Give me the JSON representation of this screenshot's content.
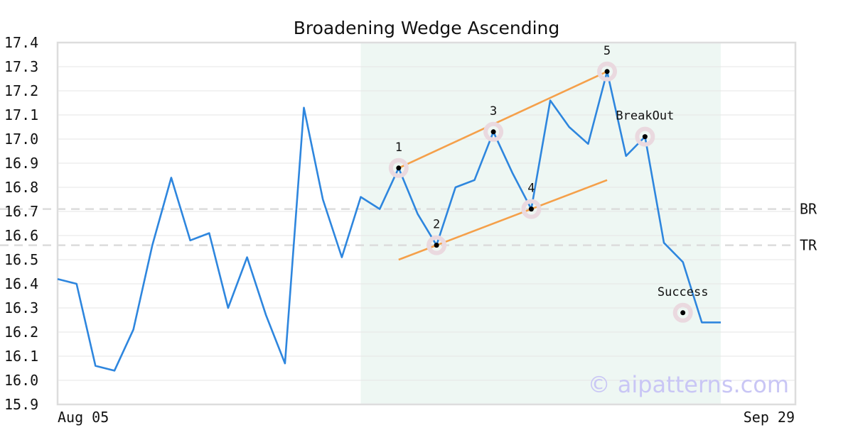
{
  "chart_data": {
    "type": "line",
    "title": "Broadening Wedge Ascending",
    "xlabel": "",
    "ylabel": "",
    "x_tick_labels": [
      "Aug 05",
      "Sep 29"
    ],
    "ylim": [
      15.9,
      17.4
    ],
    "y_ticks": [
      15.9,
      16.0,
      16.1,
      16.2,
      16.3,
      16.4,
      16.5,
      16.6,
      16.7,
      16.8,
      16.9,
      17.0,
      17.1,
      17.2,
      17.3,
      17.4
    ],
    "grid": true,
    "series": [
      {
        "color": "#2e86de",
        "values": [
          16.42,
          16.4,
          16.06,
          16.04,
          16.21,
          16.56,
          16.84,
          16.58,
          16.61,
          16.3,
          16.51,
          16.27,
          16.07,
          17.13,
          16.75,
          16.51,
          16.76,
          16.71,
          16.88,
          16.69,
          16.56,
          16.8,
          16.83,
          17.03,
          16.86,
          16.71,
          17.16,
          17.05,
          16.98,
          17.28,
          16.93,
          17.01,
          16.57,
          16.49,
          16.24,
          16.24
        ]
      }
    ],
    "pattern_region": {
      "start_index": 16,
      "end_index": 35,
      "color": "#eef7f3"
    },
    "trend_lines": [
      {
        "color": "#f5a04a",
        "from": [
          18,
          16.88
        ],
        "to": [
          29,
          17.28
        ]
      },
      {
        "color": "#f5a04a",
        "from": [
          18,
          16.5
        ],
        "to": [
          29,
          16.83
        ]
      }
    ],
    "reference_lines": [
      {
        "label": "BR",
        "y": 16.71
      },
      {
        "label": "TR",
        "y": 16.56
      }
    ],
    "points": [
      {
        "label": "1",
        "index": 18,
        "y": 16.88
      },
      {
        "label": "2",
        "index": 20,
        "y": 16.56
      },
      {
        "label": "3",
        "index": 23,
        "y": 17.03
      },
      {
        "label": "4",
        "index": 25,
        "y": 16.71
      },
      {
        "label": "5",
        "index": 29,
        "y": 17.28
      },
      {
        "label": "BreakOut",
        "index": 31,
        "y": 17.01
      },
      {
        "label": "Success",
        "index": 33,
        "y": 16.28
      }
    ],
    "watermark": "© aipatterns.com"
  }
}
